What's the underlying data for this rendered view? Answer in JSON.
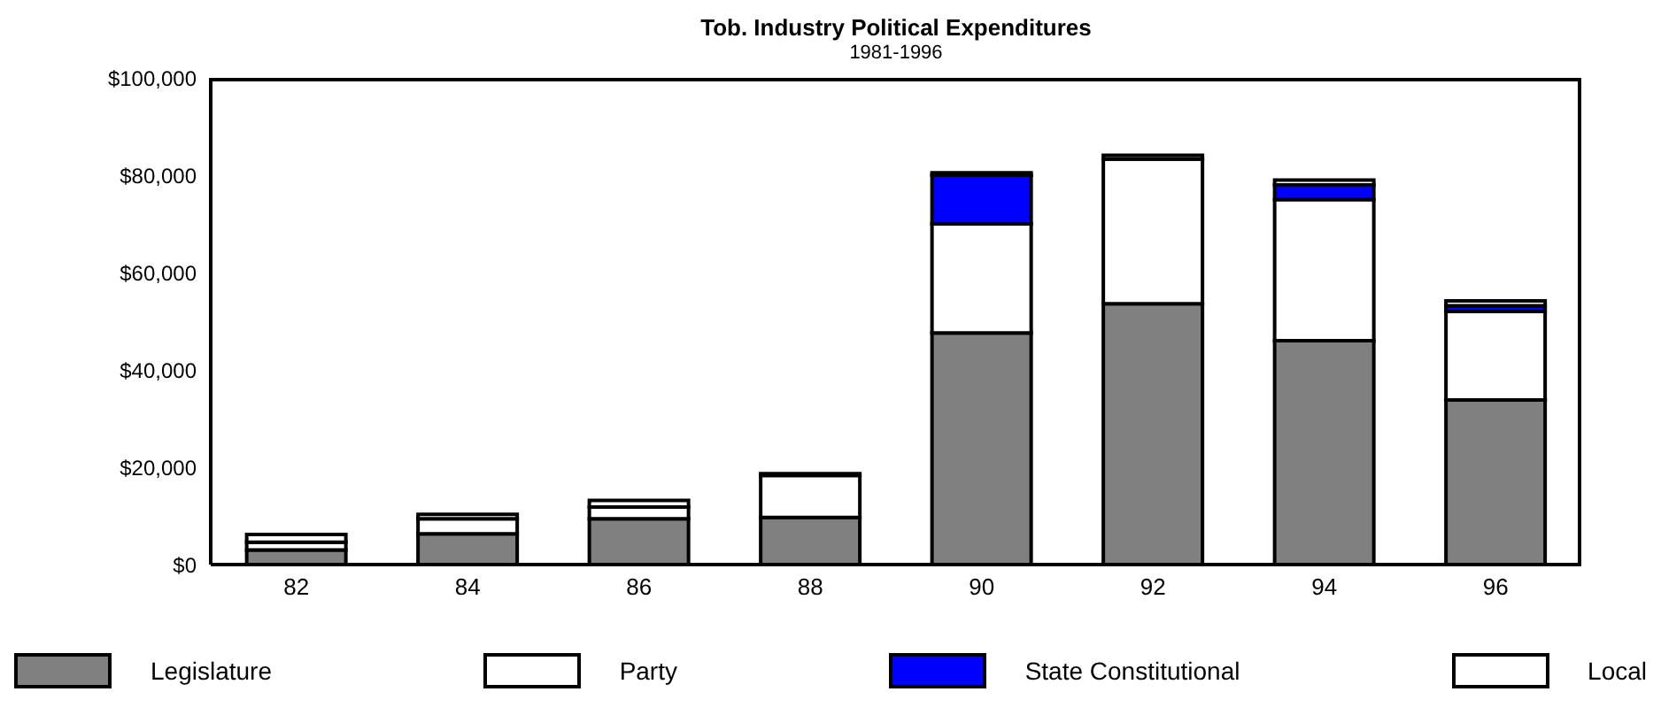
{
  "chart_data": {
    "type": "bar",
    "title": "Tob. Industry Political Expenditures",
    "subtitle": "1981-1996",
    "stacked": true,
    "categories": [
      "82",
      "84",
      "86",
      "88",
      "90",
      "92",
      "94",
      "96"
    ],
    "series": [
      {
        "name": "Legislature",
        "color": "#808080",
        "values": [
          3000,
          6300,
          9400,
          9700,
          47600,
          53600,
          46000,
          33800
        ]
      },
      {
        "name": "Party",
        "color": "#ffffff",
        "values": [
          1600,
          3100,
          2400,
          8600,
          22400,
          29700,
          29000,
          18200
        ]
      },
      {
        "name": "State Constitutional",
        "color": "#0000ff",
        "values": [
          0,
          0,
          0,
          0,
          10000,
          0,
          3000,
          1200
        ]
      },
      {
        "name": "Local",
        "color": "#ffffff",
        "values": [
          1600,
          900,
          1400,
          400,
          500,
          800,
          1000,
          1000
        ]
      }
    ],
    "ylim": [
      0,
      100000
    ],
    "yticks": [
      {
        "value": 0,
        "label": "$0"
      },
      {
        "value": 20000,
        "label": "$20,000"
      },
      {
        "value": 40000,
        "label": "$40,000"
      },
      {
        "value": 60000,
        "label": "$60,000"
      },
      {
        "value": 80000,
        "label": "$80,000"
      },
      {
        "value": 100000,
        "label": "$100,000"
      }
    ],
    "grid": false,
    "legend": "bottom"
  }
}
